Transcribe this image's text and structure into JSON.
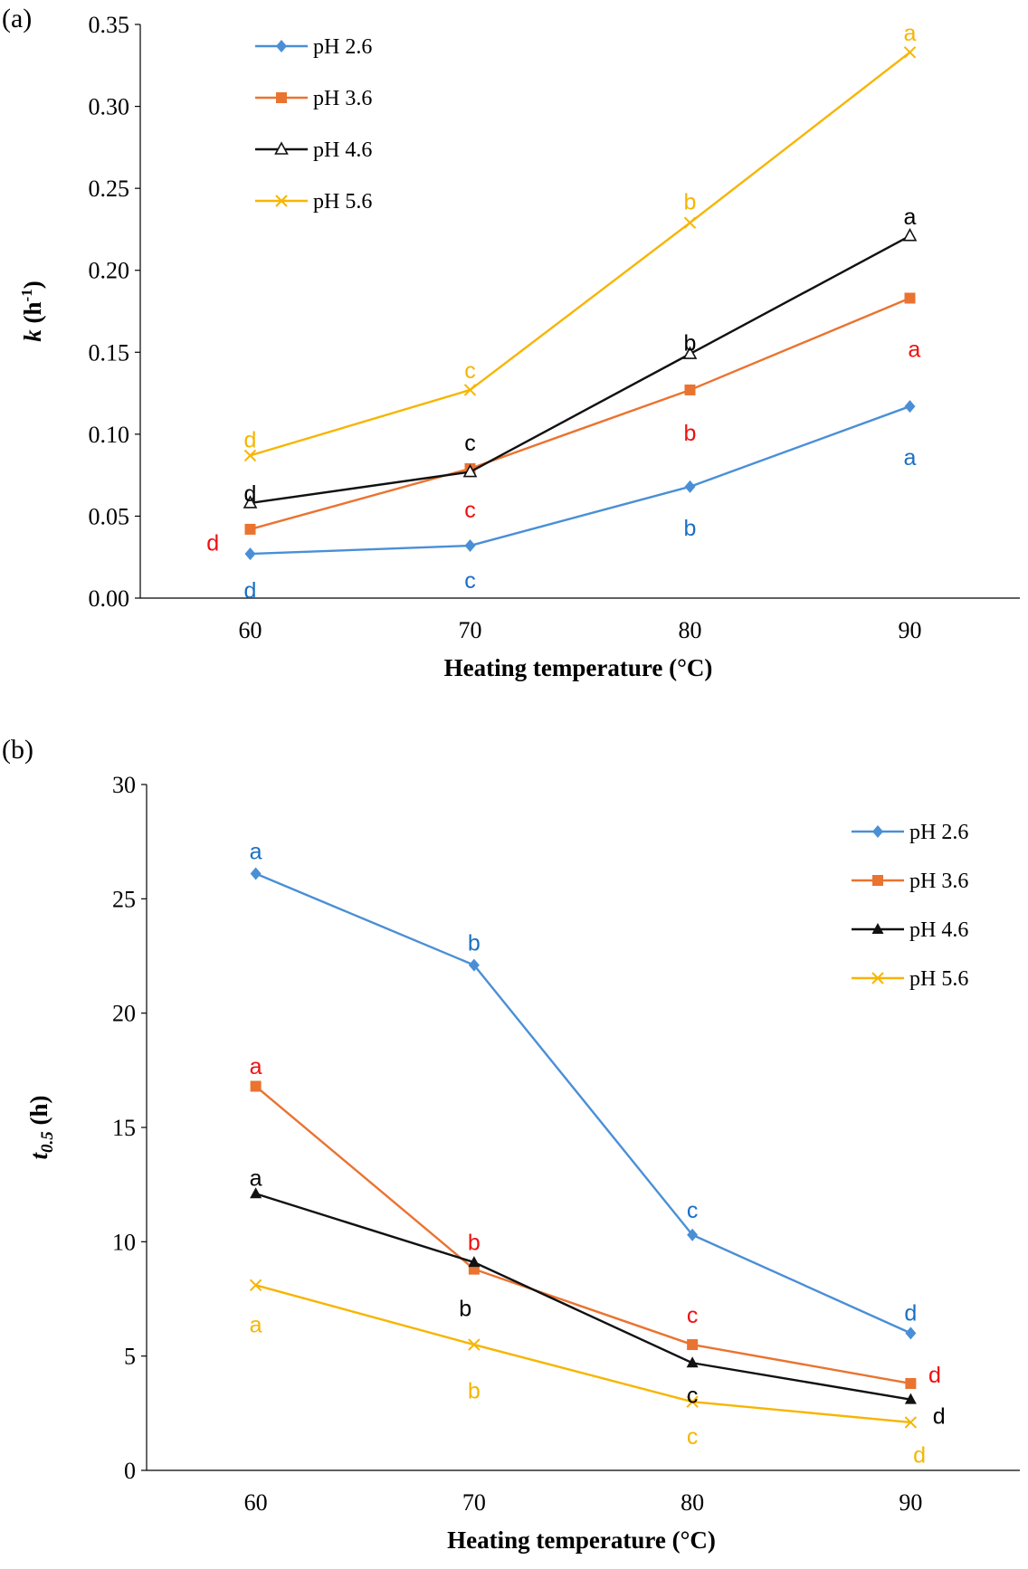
{
  "colors": {
    "pH 2.6": "#4a8fd6",
    "pH 3.6": "#ea7330",
    "pH 4.6": "#111111",
    "pH 5.6": "#f7b500",
    "red": "#ee1111",
    "blue": "#1a6fc4",
    "black": "#000000",
    "yellow": "#f7b500"
  },
  "chart_data": [
    {
      "type": "line",
      "panel": "(a)",
      "title": "",
      "xlabel": "Heating temperature (°C)",
      "ylabel_main": "k",
      "ylabel_unit": "(h",
      "ylabel_sup": "-1",
      "ylabel_close": ")",
      "x": [
        60,
        70,
        80,
        90
      ],
      "x_ticks": [
        "60",
        "70",
        "80",
        "90"
      ],
      "xlim": [
        55,
        95
      ],
      "ylim": [
        0,
        0.35
      ],
      "y_ticks": [
        "0.00",
        "0.05",
        "0.10",
        "0.15",
        "0.20",
        "0.25",
        "0.30",
        "0.35"
      ],
      "legend_position": "top-left",
      "series": [
        {
          "name": "pH 2.6",
          "marker": "diamond",
          "values": [
            0.027,
            0.032,
            0.068,
            0.117
          ]
        },
        {
          "name": "pH 3.6",
          "marker": "square",
          "values": [
            0.042,
            0.079,
            0.127,
            0.183
          ]
        },
        {
          "name": "pH 4.6",
          "marker": "triangle-open",
          "values": [
            0.058,
            0.077,
            0.149,
            0.221
          ]
        },
        {
          "name": "pH 5.6",
          "marker": "x",
          "values": [
            0.087,
            0.127,
            0.229,
            0.333
          ]
        }
      ],
      "annotations": [
        {
          "text": "d",
          "x": 60,
          "y": 0.005,
          "color": "blue"
        },
        {
          "text": "c",
          "x": 70,
          "y": 0.011,
          "color": "blue"
        },
        {
          "text": "b",
          "x": 80,
          "y": 0.043,
          "color": "blue"
        },
        {
          "text": "a",
          "x": 90,
          "y": 0.086,
          "color": "blue"
        },
        {
          "text": "d",
          "x": 58.3,
          "y": 0.034,
          "color": "red"
        },
        {
          "text": "c",
          "x": 70,
          "y": 0.054,
          "color": "red"
        },
        {
          "text": "b",
          "x": 80,
          "y": 0.101,
          "color": "red"
        },
        {
          "text": "a",
          "x": 90.2,
          "y": 0.152,
          "color": "red"
        },
        {
          "text": "d",
          "x": 60,
          "y": 0.064,
          "color": "black"
        },
        {
          "text": "c",
          "x": 70,
          "y": 0.095,
          "color": "black"
        },
        {
          "text": "b",
          "x": 80,
          "y": 0.156,
          "color": "black"
        },
        {
          "text": "a",
          "x": 90,
          "y": 0.233,
          "color": "black"
        },
        {
          "text": "d",
          "x": 60,
          "y": 0.097,
          "color": "yellow"
        },
        {
          "text": "c",
          "x": 70,
          "y": 0.139,
          "color": "yellow"
        },
        {
          "text": "b",
          "x": 80,
          "y": 0.242,
          "color": "yellow"
        },
        {
          "text": "a",
          "x": 90,
          "y": 0.345,
          "color": "yellow"
        }
      ]
    },
    {
      "type": "line",
      "panel": "(b)",
      "title": "",
      "xlabel": "Heating temperature (°C)",
      "ylabel_main": "t",
      "ylabel_sub": "0.5",
      "ylabel_unit": " (h)",
      "x": [
        60,
        70,
        80,
        90
      ],
      "x_ticks": [
        "60",
        "70",
        "80",
        "90"
      ],
      "xlim": [
        55,
        95
      ],
      "ylim": [
        0,
        30
      ],
      "y_ticks": [
        "0",
        "5",
        "10",
        "15",
        "20",
        "25",
        "30"
      ],
      "legend_position": "top-right",
      "series": [
        {
          "name": "pH 2.6",
          "marker": "diamond",
          "values": [
            26.1,
            22.1,
            10.3,
            6.0
          ]
        },
        {
          "name": "pH 3.6",
          "marker": "square",
          "values": [
            16.8,
            8.8,
            5.5,
            3.8
          ]
        },
        {
          "name": "pH 4.6",
          "marker": "triangle",
          "values": [
            12.1,
            9.1,
            4.7,
            3.1
          ]
        },
        {
          "name": "pH 5.6",
          "marker": "x",
          "values": [
            8.1,
            5.5,
            3.0,
            2.1
          ]
        }
      ],
      "annotations": [
        {
          "text": "a",
          "x": 60,
          "y": 27.1,
          "color": "blue"
        },
        {
          "text": "b",
          "x": 70,
          "y": 23.1,
          "color": "blue"
        },
        {
          "text": "c",
          "x": 80,
          "y": 11.4,
          "color": "blue"
        },
        {
          "text": "d",
          "x": 90,
          "y": 6.9,
          "color": "blue"
        },
        {
          "text": "a",
          "x": 60,
          "y": 17.7,
          "color": "red"
        },
        {
          "text": "b",
          "x": 70,
          "y": 10.0,
          "color": "red"
        },
        {
          "text": "c",
          "x": 80,
          "y": 6.8,
          "color": "red"
        },
        {
          "text": "d",
          "x": 91.1,
          "y": 4.2,
          "color": "red"
        },
        {
          "text": "a",
          "x": 60,
          "y": 12.8,
          "color": "black"
        },
        {
          "text": "b",
          "x": 69.6,
          "y": 7.1,
          "color": "black"
        },
        {
          "text": "c",
          "x": 80,
          "y": 3.3,
          "color": "black"
        },
        {
          "text": "d",
          "x": 91.3,
          "y": 2.4,
          "color": "black"
        },
        {
          "text": "a",
          "x": 60,
          "y": 6.4,
          "color": "yellow"
        },
        {
          "text": "b",
          "x": 70,
          "y": 3.5,
          "color": "yellow"
        },
        {
          "text": "c",
          "x": 80,
          "y": 1.5,
          "color": "yellow"
        },
        {
          "text": "d",
          "x": 90.4,
          "y": 0.7,
          "color": "yellow"
        }
      ]
    }
  ]
}
